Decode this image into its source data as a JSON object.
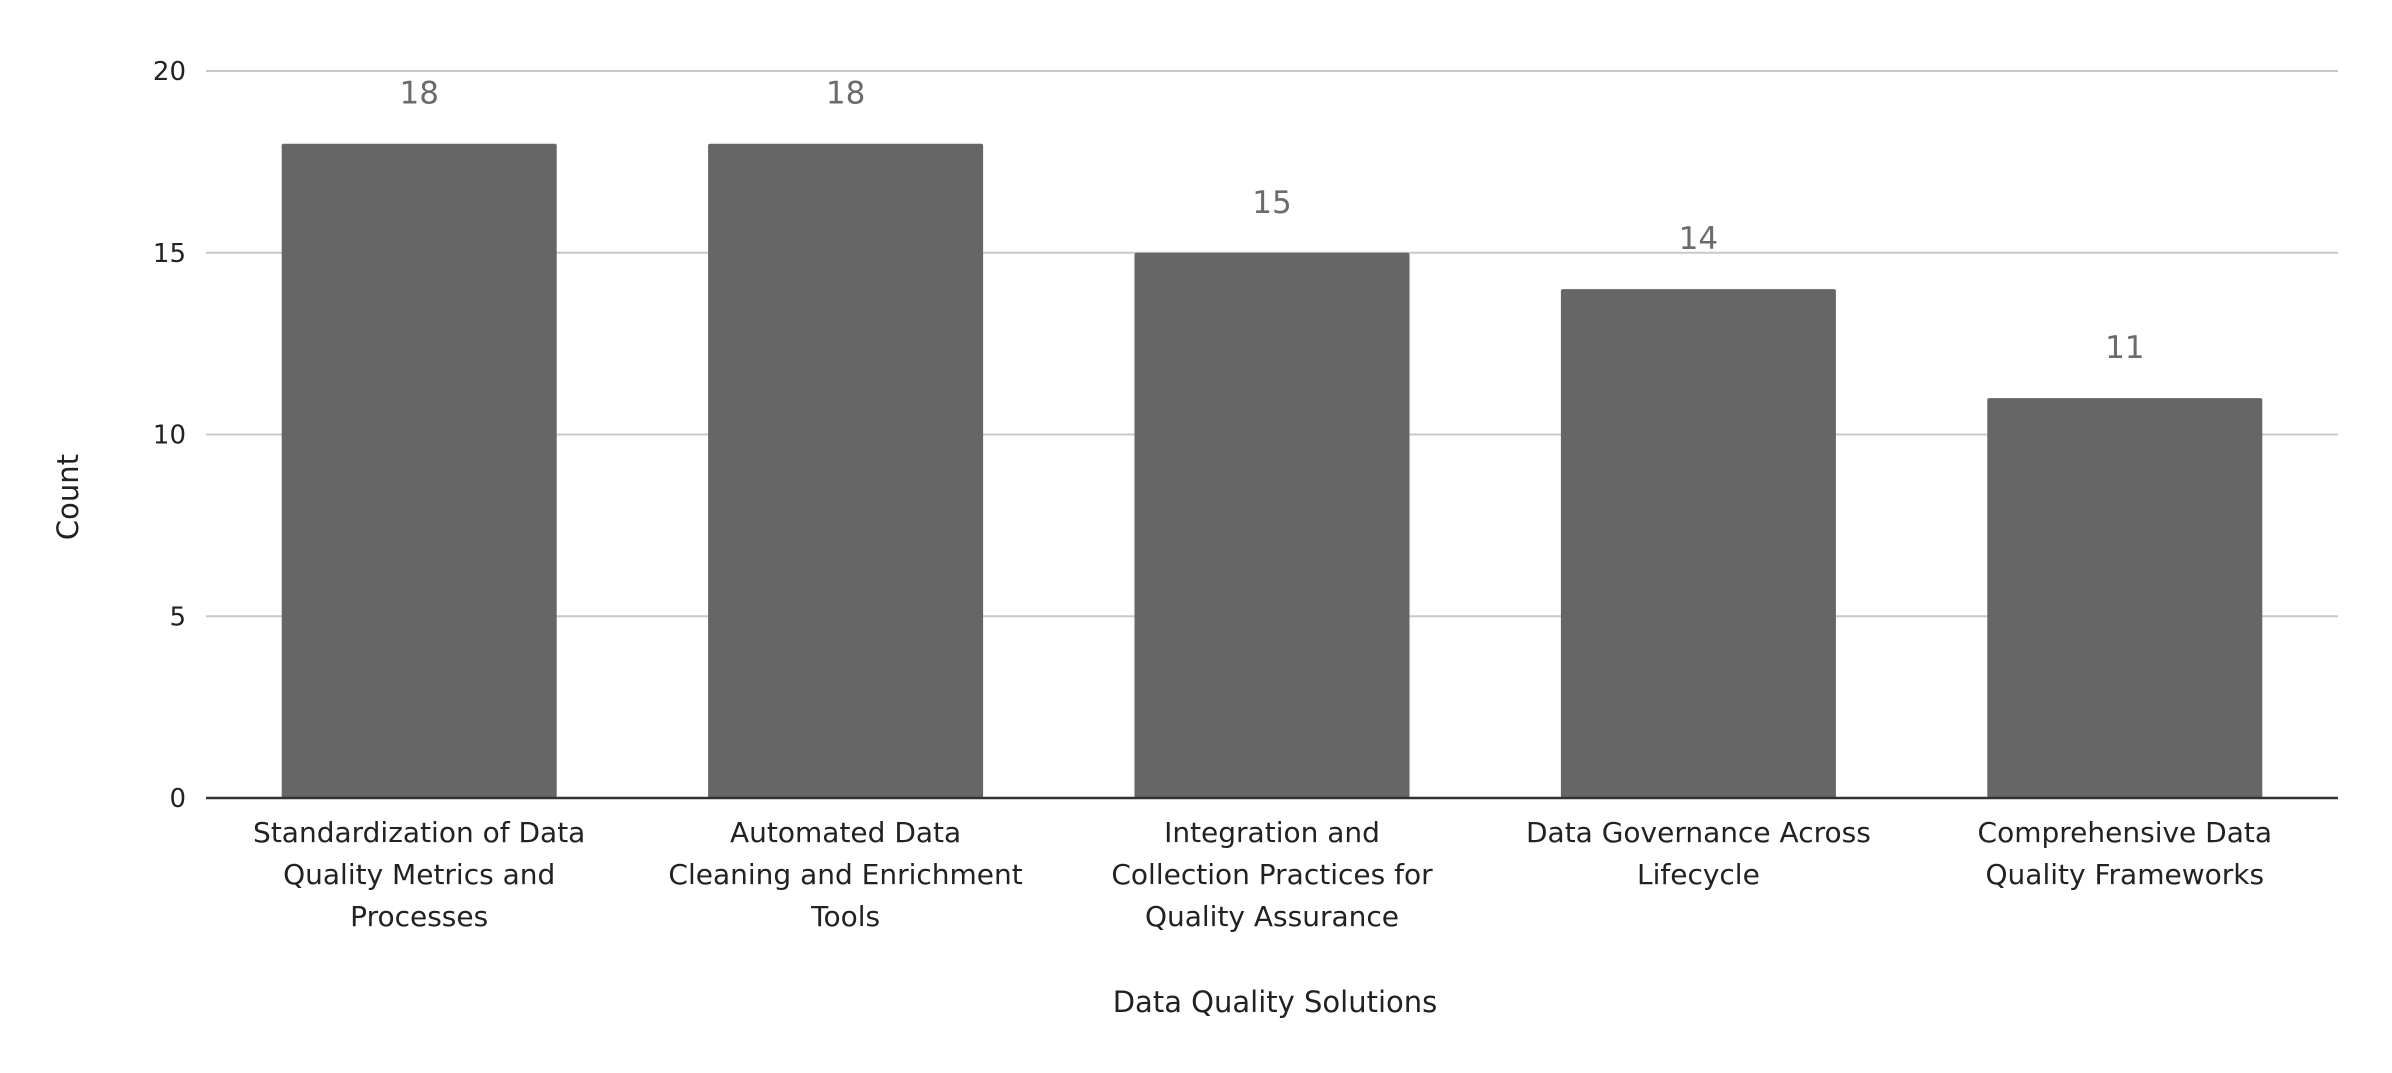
{
  "chart_data": {
    "type": "bar",
    "title": "",
    "xlabel": "Data Quality Solutions",
    "ylabel": "Count",
    "ylim": [
      0,
      20
    ],
    "yticks": [
      0,
      5,
      10,
      15,
      20
    ],
    "grid": true,
    "legend": "none",
    "categories": [
      [
        "Standardization of Data",
        "Quality Metrics and",
        "Processes"
      ],
      [
        "Automated Data",
        "Cleaning and Enrichment",
        "Tools"
      ],
      [
        "Integration and",
        "Collection Practices for",
        "Quality Assurance"
      ],
      [
        "Data Governance Across",
        "Lifecycle"
      ],
      [
        "Comprehensive Data",
        "Quality Frameworks"
      ]
    ],
    "values": [
      18,
      18,
      15,
      14,
      11
    ],
    "data_labels": [
      "18",
      "18",
      "15",
      "14",
      "11"
    ],
    "colors": {
      "bar": "#666666",
      "grid": "#c8c8c8",
      "axis": "#333333",
      "value_label": "#6b6b6b",
      "text": "#222222"
    }
  }
}
